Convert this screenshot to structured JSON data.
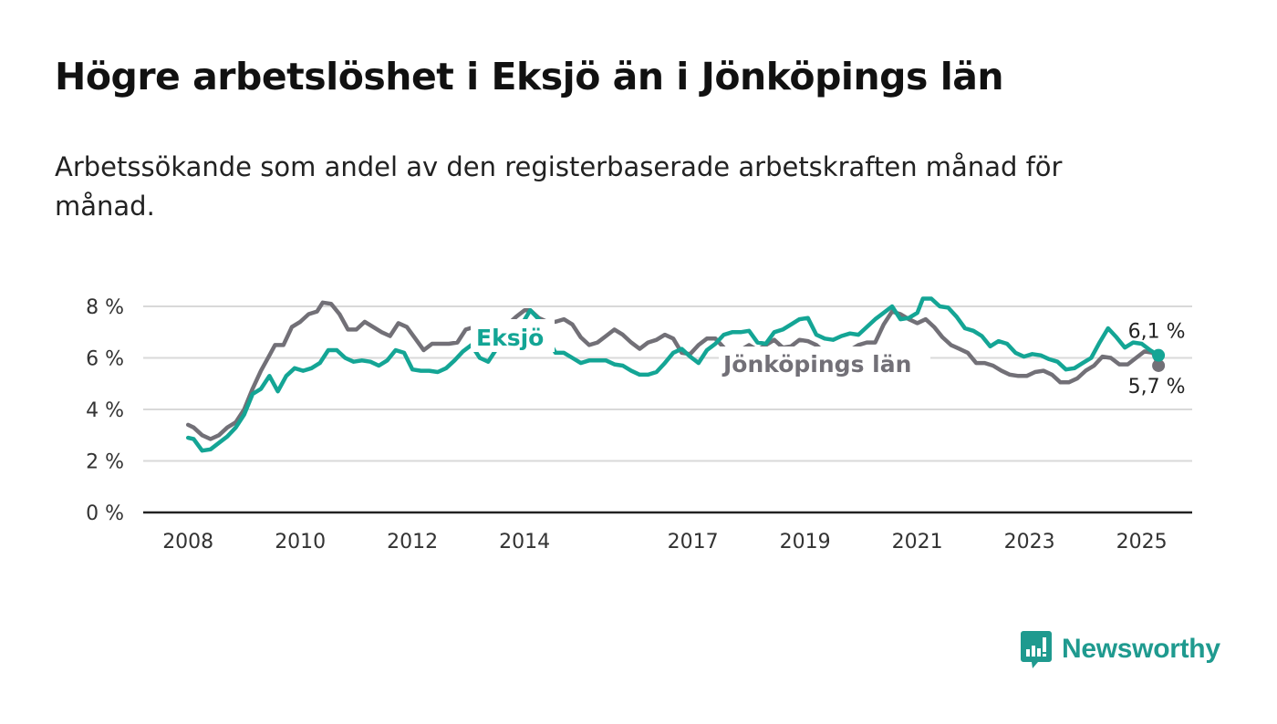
{
  "title": "Högre arbetslöshet i Eksjö än i Jönköpings län",
  "subtitle": "Arbetssökande som andel av den registerbaserade arbetskraften månad för månad.",
  "brand": "Newsworthy",
  "colors": {
    "eksjo": "#14a595",
    "lan": "#727077",
    "grid": "#d9d9d9",
    "axis": "#222222"
  },
  "chart_data": {
    "type": "line",
    "x_unit": "year",
    "ylim": [
      0,
      8
    ],
    "xlim": [
      2007.2,
      2025.9
    ],
    "yticks": [
      0,
      2,
      4,
      6,
      8
    ],
    "ytick_labels": [
      "0 %",
      "2 %",
      "4 %",
      "6 %",
      "8 %"
    ],
    "xticks": [
      2008,
      2010,
      2012,
      2014,
      2017,
      2019,
      2021,
      2023,
      2025
    ],
    "xtick_labels": [
      "2008",
      "2010",
      "2012",
      "2014",
      "2017",
      "2019",
      "2021",
      "2023",
      "2025"
    ],
    "grid": true,
    "series": [
      {
        "name": "Jönköpings län",
        "color_key": "lan",
        "end_label": "5,7 %",
        "points": [
          [
            2008.0,
            3.4
          ],
          [
            2008.1,
            3.3
          ],
          [
            2008.25,
            3.0
          ],
          [
            2008.4,
            2.85
          ],
          [
            2008.55,
            3.0
          ],
          [
            2008.7,
            3.3
          ],
          [
            2008.85,
            3.5
          ],
          [
            2009.0,
            4.0
          ],
          [
            2009.15,
            4.8
          ],
          [
            2009.3,
            5.5
          ],
          [
            2009.45,
            6.1
          ],
          [
            2009.55,
            6.5
          ],
          [
            2009.7,
            6.5
          ],
          [
            2009.85,
            7.2
          ],
          [
            2010.0,
            7.4
          ],
          [
            2010.15,
            7.7
          ],
          [
            2010.3,
            7.8
          ],
          [
            2010.4,
            8.15
          ],
          [
            2010.55,
            8.1
          ],
          [
            2010.7,
            7.7
          ],
          [
            2010.85,
            7.1
          ],
          [
            2011.0,
            7.1
          ],
          [
            2011.15,
            7.4
          ],
          [
            2011.3,
            7.2
          ],
          [
            2011.45,
            7.0
          ],
          [
            2011.6,
            6.85
          ],
          [
            2011.75,
            7.35
          ],
          [
            2011.9,
            7.2
          ],
          [
            2012.05,
            6.75
          ],
          [
            2012.2,
            6.3
          ],
          [
            2012.35,
            6.55
          ],
          [
            2012.5,
            6.55
          ],
          [
            2012.65,
            6.55
          ],
          [
            2012.8,
            6.6
          ],
          [
            2012.95,
            7.1
          ],
          [
            2013.1,
            7.2
          ],
          [
            2013.25,
            6.9
          ],
          [
            2013.4,
            6.6
          ],
          [
            2013.55,
            6.8
          ],
          [
            2013.7,
            7.3
          ],
          [
            2013.85,
            7.6
          ],
          [
            2014.0,
            7.85
          ],
          [
            2014.1,
            7.85
          ],
          [
            2014.25,
            7.55
          ],
          [
            2014.4,
            7.4
          ],
          [
            2014.55,
            7.4
          ],
          [
            2014.7,
            7.5
          ],
          [
            2014.85,
            7.3
          ],
          [
            2015.0,
            6.8
          ],
          [
            2015.15,
            6.5
          ],
          [
            2015.3,
            6.6
          ],
          [
            2015.45,
            6.85
          ],
          [
            2015.6,
            7.1
          ],
          [
            2015.75,
            6.9
          ],
          [
            2015.9,
            6.6
          ],
          [
            2016.05,
            6.35
          ],
          [
            2016.2,
            6.6
          ],
          [
            2016.35,
            6.7
          ],
          [
            2016.5,
            6.9
          ],
          [
            2016.65,
            6.75
          ],
          [
            2016.8,
            6.2
          ],
          [
            2016.95,
            6.15
          ],
          [
            2017.1,
            6.5
          ],
          [
            2017.25,
            6.75
          ],
          [
            2017.4,
            6.75
          ],
          [
            2017.55,
            6.4
          ],
          [
            2017.7,
            6.0
          ],
          [
            2017.85,
            6.3
          ],
          [
            2018.0,
            6.5
          ],
          [
            2018.15,
            6.3
          ],
          [
            2018.3,
            6.5
          ],
          [
            2018.45,
            6.7
          ],
          [
            2018.6,
            6.4
          ],
          [
            2018.75,
            6.45
          ],
          [
            2018.9,
            6.7
          ],
          [
            2019.05,
            6.65
          ],
          [
            2019.2,
            6.5
          ],
          [
            2019.35,
            6.2
          ],
          [
            2019.5,
            6.0
          ],
          [
            2019.65,
            6.2
          ],
          [
            2019.8,
            6.3
          ],
          [
            2019.95,
            6.5
          ],
          [
            2020.1,
            6.6
          ],
          [
            2020.25,
            6.6
          ],
          [
            2020.4,
            7.3
          ],
          [
            2020.55,
            7.8
          ],
          [
            2020.7,
            7.7
          ],
          [
            2020.85,
            7.5
          ],
          [
            2021.0,
            7.35
          ],
          [
            2021.15,
            7.5
          ],
          [
            2021.3,
            7.2
          ],
          [
            2021.45,
            6.8
          ],
          [
            2021.6,
            6.5
          ],
          [
            2021.75,
            6.35
          ],
          [
            2021.9,
            6.2
          ],
          [
            2022.05,
            5.8
          ],
          [
            2022.2,
            5.8
          ],
          [
            2022.35,
            5.7
          ],
          [
            2022.5,
            5.5
          ],
          [
            2022.65,
            5.35
          ],
          [
            2022.8,
            5.3
          ],
          [
            2022.95,
            5.3
          ],
          [
            2023.1,
            5.45
          ],
          [
            2023.25,
            5.5
          ],
          [
            2023.4,
            5.35
          ],
          [
            2023.55,
            5.05
          ],
          [
            2023.7,
            5.05
          ],
          [
            2023.85,
            5.2
          ],
          [
            2024.0,
            5.5
          ],
          [
            2024.15,
            5.7
          ],
          [
            2024.3,
            6.05
          ],
          [
            2024.45,
            6.0
          ],
          [
            2024.6,
            5.75
          ],
          [
            2024.75,
            5.75
          ],
          [
            2024.9,
            6.0
          ],
          [
            2025.05,
            6.25
          ],
          [
            2025.2,
            6.2
          ],
          [
            2025.3,
            5.7
          ]
        ]
      },
      {
        "name": "Eksjö",
        "color_key": "eksjo",
        "end_label": "6,1 %",
        "points": [
          [
            2008.0,
            2.9
          ],
          [
            2008.1,
            2.85
          ],
          [
            2008.25,
            2.4
          ],
          [
            2008.4,
            2.45
          ],
          [
            2008.55,
            2.7
          ],
          [
            2008.7,
            2.95
          ],
          [
            2008.85,
            3.3
          ],
          [
            2009.0,
            3.8
          ],
          [
            2009.15,
            4.6
          ],
          [
            2009.3,
            4.8
          ],
          [
            2009.45,
            5.3
          ],
          [
            2009.6,
            4.7
          ],
          [
            2009.75,
            5.3
          ],
          [
            2009.9,
            5.6
          ],
          [
            2010.05,
            5.5
          ],
          [
            2010.2,
            5.6
          ],
          [
            2010.35,
            5.8
          ],
          [
            2010.5,
            6.3
          ],
          [
            2010.65,
            6.3
          ],
          [
            2010.8,
            6.0
          ],
          [
            2010.95,
            5.85
          ],
          [
            2011.1,
            5.9
          ],
          [
            2011.25,
            5.85
          ],
          [
            2011.4,
            5.7
          ],
          [
            2011.55,
            5.9
          ],
          [
            2011.7,
            6.3
          ],
          [
            2011.85,
            6.2
          ],
          [
            2012.0,
            5.55
          ],
          [
            2012.15,
            5.5
          ],
          [
            2012.3,
            5.5
          ],
          [
            2012.45,
            5.45
          ],
          [
            2012.6,
            5.6
          ],
          [
            2012.75,
            5.9
          ],
          [
            2012.9,
            6.25
          ],
          [
            2013.05,
            6.5
          ],
          [
            2013.2,
            6.0
          ],
          [
            2013.35,
            5.85
          ],
          [
            2013.5,
            6.35
          ],
          [
            2013.65,
            6.9
          ],
          [
            2013.8,
            6.9
          ],
          [
            2013.95,
            7.3
          ],
          [
            2014.1,
            7.85
          ],
          [
            2014.25,
            7.5
          ],
          [
            2014.4,
            6.8
          ],
          [
            2014.55,
            6.2
          ],
          [
            2014.7,
            6.2
          ],
          [
            2014.85,
            6.0
          ],
          [
            2015.0,
            5.8
          ],
          [
            2015.15,
            5.9
          ],
          [
            2015.3,
            5.9
          ],
          [
            2015.45,
            5.9
          ],
          [
            2015.6,
            5.75
          ],
          [
            2015.75,
            5.7
          ],
          [
            2015.9,
            5.5
          ],
          [
            2016.05,
            5.35
          ],
          [
            2016.2,
            5.35
          ],
          [
            2016.35,
            5.45
          ],
          [
            2016.5,
            5.8
          ],
          [
            2016.65,
            6.2
          ],
          [
            2016.8,
            6.35
          ],
          [
            2016.95,
            6.05
          ],
          [
            2017.1,
            5.8
          ],
          [
            2017.25,
            6.3
          ],
          [
            2017.4,
            6.55
          ],
          [
            2017.55,
            6.9
          ],
          [
            2017.7,
            7.0
          ],
          [
            2017.85,
            7.0
          ],
          [
            2018.0,
            7.05
          ],
          [
            2018.15,
            6.6
          ],
          [
            2018.3,
            6.55
          ],
          [
            2018.45,
            7.0
          ],
          [
            2018.6,
            7.1
          ],
          [
            2018.75,
            7.3
          ],
          [
            2018.9,
            7.5
          ],
          [
            2019.05,
            7.55
          ],
          [
            2019.2,
            6.9
          ],
          [
            2019.35,
            6.75
          ],
          [
            2019.5,
            6.7
          ],
          [
            2019.65,
            6.85
          ],
          [
            2019.8,
            6.95
          ],
          [
            2019.95,
            6.9
          ],
          [
            2020.1,
            7.2
          ],
          [
            2020.25,
            7.5
          ],
          [
            2020.4,
            7.75
          ],
          [
            2020.55,
            8.0
          ],
          [
            2020.7,
            7.5
          ],
          [
            2020.85,
            7.55
          ],
          [
            2021.0,
            7.75
          ],
          [
            2021.1,
            8.3
          ],
          [
            2021.25,
            8.3
          ],
          [
            2021.4,
            8.0
          ],
          [
            2021.55,
            7.95
          ],
          [
            2021.7,
            7.6
          ],
          [
            2021.85,
            7.15
          ],
          [
            2022.0,
            7.05
          ],
          [
            2022.15,
            6.85
          ],
          [
            2022.3,
            6.45
          ],
          [
            2022.45,
            6.65
          ],
          [
            2022.6,
            6.55
          ],
          [
            2022.75,
            6.2
          ],
          [
            2022.9,
            6.05
          ],
          [
            2023.05,
            6.15
          ],
          [
            2023.2,
            6.1
          ],
          [
            2023.35,
            5.95
          ],
          [
            2023.5,
            5.85
          ],
          [
            2023.65,
            5.55
          ],
          [
            2023.8,
            5.6
          ],
          [
            2023.95,
            5.8
          ],
          [
            2024.1,
            6.0
          ],
          [
            2024.25,
            6.6
          ],
          [
            2024.4,
            7.15
          ],
          [
            2024.55,
            6.8
          ],
          [
            2024.7,
            6.4
          ],
          [
            2024.85,
            6.6
          ],
          [
            2025.0,
            6.55
          ],
          [
            2025.15,
            6.3
          ],
          [
            2025.3,
            6.1
          ]
        ]
      }
    ]
  }
}
